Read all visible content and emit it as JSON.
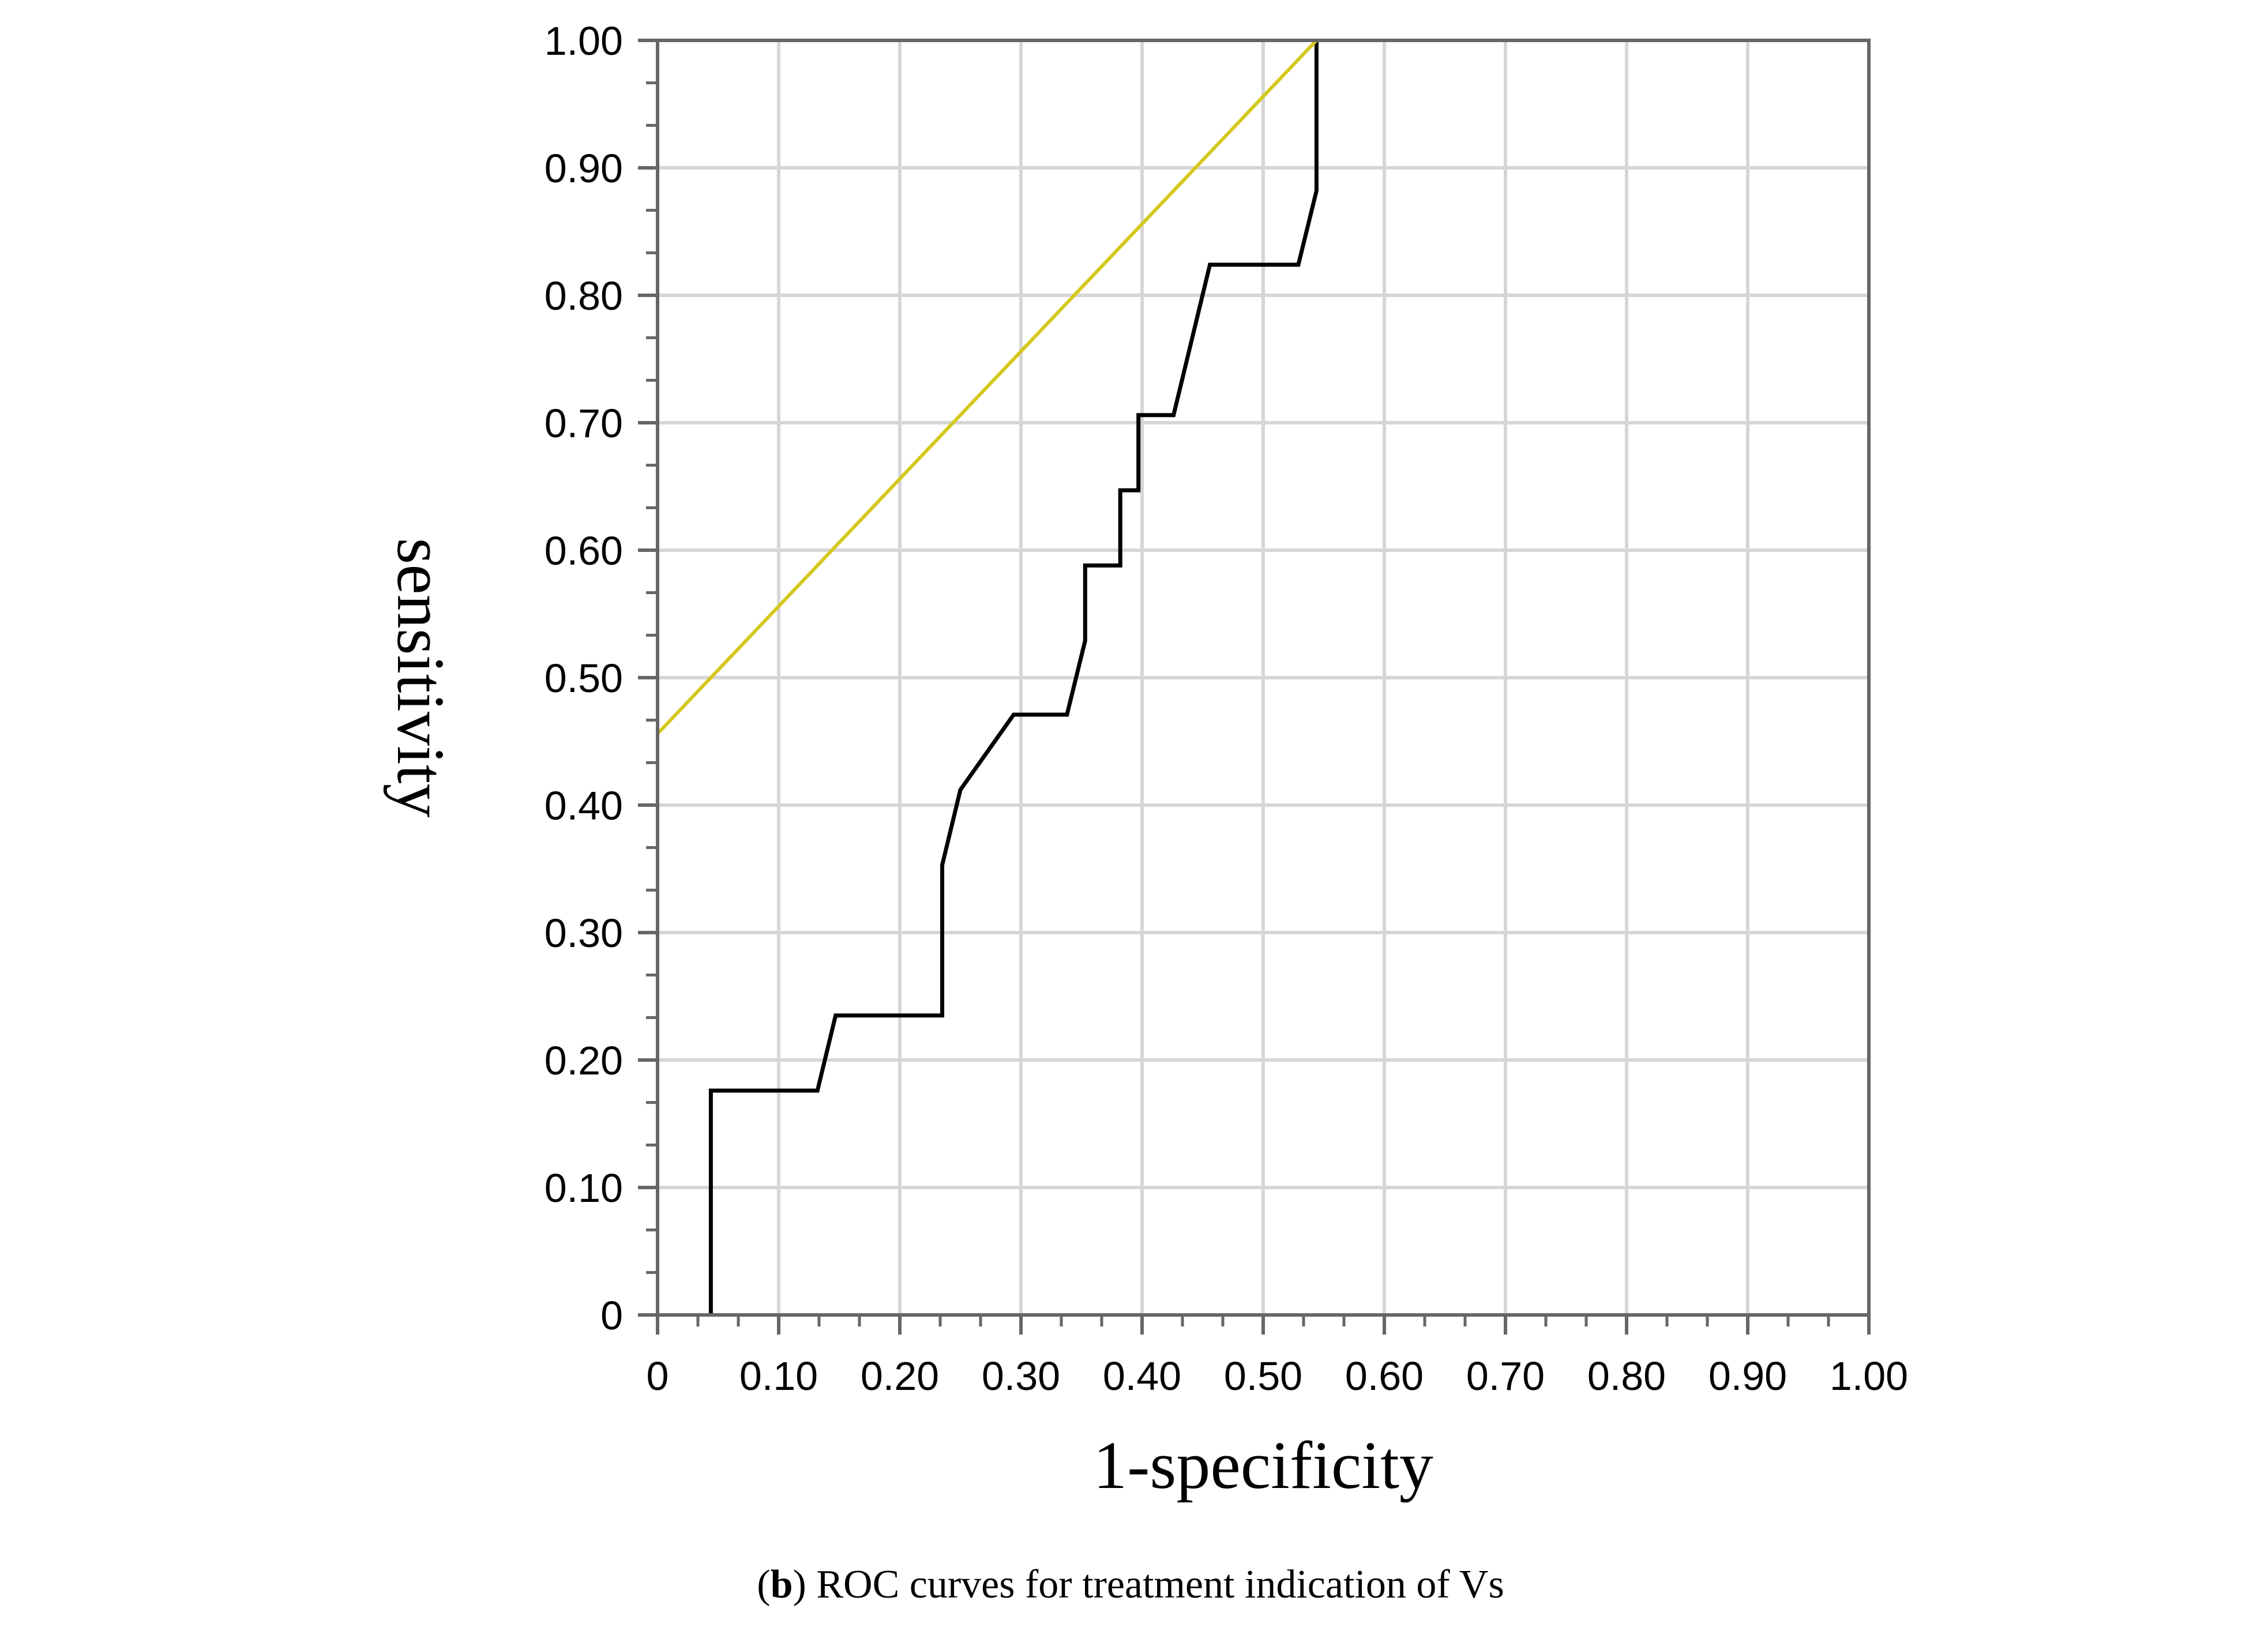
{
  "chart_data": {
    "type": "line",
    "xlabel": "1-specificity",
    "ylabel": "sensitivity",
    "xlim": [
      0,
      1
    ],
    "ylim": [
      0,
      1
    ],
    "grid": true,
    "x_tick_labels": [
      "0",
      "0.10",
      "0.20",
      "0.30",
      "0.40",
      "0.50",
      "0.60",
      "0.70",
      "0.80",
      "0.90",
      "1.00"
    ],
    "y_tick_labels": [
      "0",
      "0.10",
      "0.20",
      "0.30",
      "0.40",
      "0.50",
      "0.60",
      "0.70",
      "0.80",
      "0.90",
      "1.00"
    ],
    "series": [
      {
        "name": "ROC curve",
        "color": "#000000",
        "points": [
          [
            0.044,
            0.0
          ],
          [
            0.044,
            0.176
          ],
          [
            0.132,
            0.176
          ],
          [
            0.147,
            0.235
          ],
          [
            0.235,
            0.235
          ],
          [
            0.235,
            0.353
          ],
          [
            0.25,
            0.412
          ],
          [
            0.294,
            0.471
          ],
          [
            0.338,
            0.471
          ],
          [
            0.353,
            0.529
          ],
          [
            0.353,
            0.588
          ],
          [
            0.382,
            0.588
          ],
          [
            0.382,
            0.647
          ],
          [
            0.397,
            0.647
          ],
          [
            0.397,
            0.706
          ],
          [
            0.426,
            0.706
          ],
          [
            0.456,
            0.824
          ],
          [
            0.529,
            0.824
          ],
          [
            0.544,
            0.882
          ],
          [
            0.544,
            1.0
          ]
        ]
      },
      {
        "name": "reference line",
        "color": "#d4c81c",
        "points": [
          [
            0.0,
            0.456
          ],
          [
            0.544,
            1.0
          ]
        ]
      }
    ]
  },
  "caption": {
    "open_paren": "(",
    "letter": "b",
    "text": ") ROC curves for treatment indication of Vs"
  }
}
